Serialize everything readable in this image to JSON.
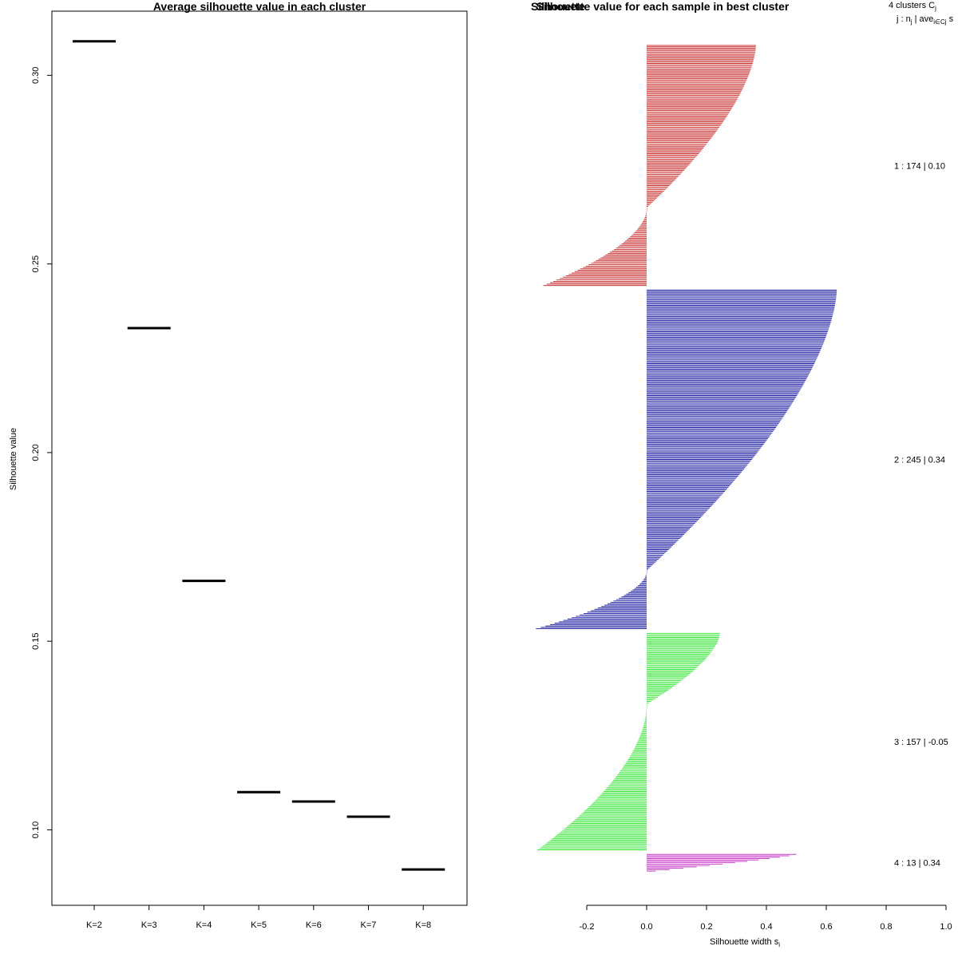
{
  "chart_data": [
    {
      "type": "scatter",
      "marker": "horizontal-segment",
      "title": "Average silhouette value in each cluster",
      "xlabel": "",
      "ylabel": "Silhouette value",
      "categories": [
        "K=2",
        "K=3",
        "K=4",
        "K=5",
        "K=6",
        "K=7",
        "K=8"
      ],
      "values": [
        0.309,
        0.233,
        0.166,
        0.11,
        0.1075,
        0.1035,
        0.0895
      ],
      "ylim": [
        0.08,
        0.317
      ],
      "yticks": [
        "0.10",
        "0.15",
        "0.20",
        "0.25",
        "0.30"
      ],
      "ytick_values": [
        0.1,
        0.15,
        0.2,
        0.25,
        0.3
      ],
      "grid": false,
      "color": "#000000"
    },
    {
      "type": "bar",
      "orientation": "horizontal",
      "title": "Silhouette value for each sample in best cluster",
      "overlay_title": "Silhouette",
      "xlabel": "Silhouette width s",
      "xlabel_subscript": "i",
      "ylabel": "",
      "xlim": [
        -0.2,
        1.0
      ],
      "xticks": [
        "-0.2",
        "0.0",
        "0.2",
        "0.4",
        "0.6",
        "0.8",
        "1.0"
      ],
      "xtick_values": [
        -0.2,
        0.0,
        0.2,
        0.4,
        0.6,
        0.8,
        1.0
      ],
      "grid": false,
      "legend_header_line1": "4  clusters  C",
      "legend_header_line1_sub": "j",
      "legend_header_line2": "j :  n",
      "legend_header_line2_sub": "j",
      "legend_header_line2_rest": " | ave",
      "legend_header_line2_sub2": "i∈Cj",
      "legend_header_line2_end": "  s",
      "clusters": [
        {
          "id": 1,
          "n": 174,
          "avg_width": "0.10",
          "label": "1 :   174  |  0.10",
          "color": "#c83232",
          "max": 0.365,
          "min": -0.345,
          "zero_frac": 0.68
        },
        {
          "id": 2,
          "n": 245,
          "avg_width": "0.34",
          "label": "2 :   245  |  0.34",
          "color": "#1c1ca0",
          "max": 0.635,
          "min": -0.37,
          "zero_frac": 0.83
        },
        {
          "id": 3,
          "n": 157,
          "avg_width": "-0.05",
          "label": "3 :   157  |  -0.05",
          "color": "#3ce63c",
          "max": 0.245,
          "min": -0.365,
          "zero_frac": 0.33
        },
        {
          "id": 4,
          "n": 13,
          "avg_width": "0.34",
          "label": "4 :   13  |  0.34",
          "color": "#c83cc8",
          "max": 0.5,
          "min": 0.03,
          "zero_frac": 1.0
        }
      ]
    }
  ]
}
